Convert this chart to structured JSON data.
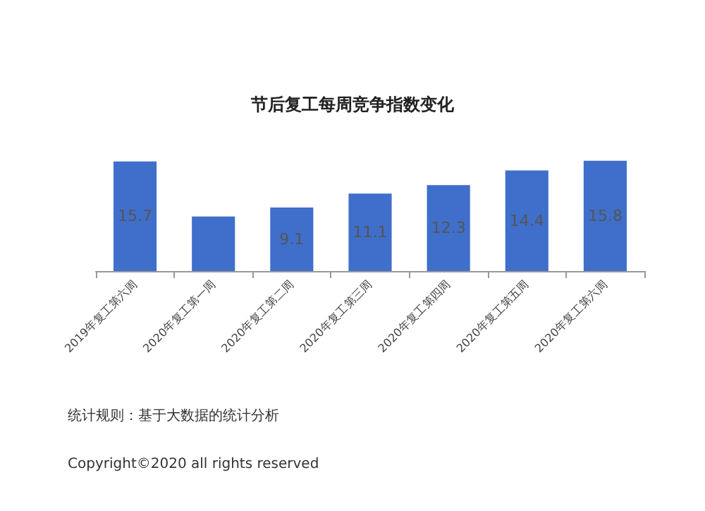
{
  "chart_data": {
    "type": "bar",
    "title": "节后复工每周竞争指数变化",
    "categories": [
      "2019年复工第六周",
      "2020年复工第一周",
      "2020年复工第二周",
      "2020年复工第三周",
      "2020年复工第四周",
      "2020年复工第五周",
      "2020年复工第六周"
    ],
    "values": [
      15.7,
      7.8,
      9.1,
      11.1,
      12.3,
      14.4,
      15.8
    ],
    "value_labels": [
      "15.7",
      null,
      "9.1",
      "11.1",
      "12.3",
      "14.4",
      "15.8"
    ],
    "color": "#3f6fca",
    "grid": false,
    "annotations": [
      "统计规则：基于大数据的统计分析",
      "Copyright©2020 all rights reserved"
    ]
  }
}
